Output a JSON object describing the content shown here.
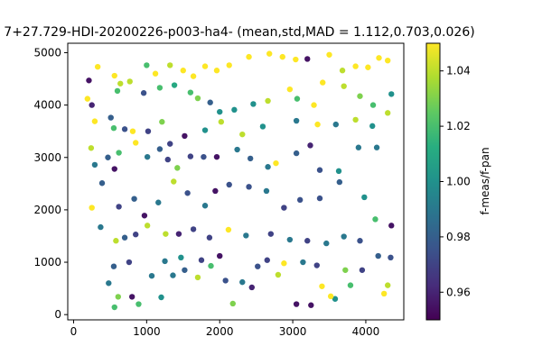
{
  "chart_data": {
    "type": "scatter",
    "title": "7+27.729-HDI-20200226-p003-ha4- (mean,std,MAD = 1.112,0.703,0.026)",
    "xlabel": "",
    "ylabel": "",
    "xlim": [
      -80,
      4520
    ],
    "ylim": [
      -100,
      5180
    ],
    "xticks": [
      0,
      1000,
      2000,
      3000,
      4000
    ],
    "yticks": [
      0,
      1000,
      2000,
      3000,
      4000,
      5000
    ],
    "grid": false,
    "colorbar": {
      "label": "f-meas/f-pan",
      "range": [
        0.95,
        1.05
      ],
      "ticks": [
        "0.96",
        "0.98",
        "1.00",
        "1.02",
        "1.04"
      ],
      "colormap": "viridis"
    },
    "points": [
      {
        "x": 210,
        "y": 4470,
        "c": 0.955
      },
      {
        "x": 330,
        "y": 4730,
        "c": 1.05
      },
      {
        "x": 560,
        "y": 4560,
        "c": 1.05
      },
      {
        "x": 640,
        "y": 4410,
        "c": 1.04
      },
      {
        "x": 770,
        "y": 4450,
        "c": 1.04
      },
      {
        "x": 1000,
        "y": 4760,
        "c": 1.02
      },
      {
        "x": 1120,
        "y": 4600,
        "c": 1.05
      },
      {
        "x": 1320,
        "y": 4760,
        "c": 1.04
      },
      {
        "x": 1500,
        "y": 4660,
        "c": 1.05
      },
      {
        "x": 1640,
        "y": 4550,
        "c": 1.05
      },
      {
        "x": 1800,
        "y": 4740,
        "c": 1.05
      },
      {
        "x": 1960,
        "y": 4660,
        "c": 1.05
      },
      {
        "x": 2130,
        "y": 4760,
        "c": 1.05
      },
      {
        "x": 2400,
        "y": 4920,
        "c": 1.05
      },
      {
        "x": 2680,
        "y": 4980,
        "c": 1.05
      },
      {
        "x": 2860,
        "y": 4920,
        "c": 1.05
      },
      {
        "x": 3040,
        "y": 4870,
        "c": 1.05
      },
      {
        "x": 3200,
        "y": 4880,
        "c": 0.955
      },
      {
        "x": 3500,
        "y": 4960,
        "c": 1.05
      },
      {
        "x": 3680,
        "y": 4660,
        "c": 1.04
      },
      {
        "x": 3860,
        "y": 4740,
        "c": 1.05
      },
      {
        "x": 4030,
        "y": 4720,
        "c": 1.05
      },
      {
        "x": 4180,
        "y": 4900,
        "c": 1.05
      },
      {
        "x": 4300,
        "y": 4850,
        "c": 1.05
      },
      {
        "x": 190,
        "y": 4120,
        "c": 1.05
      },
      {
        "x": 250,
        "y": 4000,
        "c": 0.96
      },
      {
        "x": 600,
        "y": 4270,
        "c": 1.02
      },
      {
        "x": 960,
        "y": 4230,
        "c": 0.975
      },
      {
        "x": 1180,
        "y": 4330,
        "c": 1.02
      },
      {
        "x": 1380,
        "y": 4380,
        "c": 1.01
      },
      {
        "x": 1600,
        "y": 4240,
        "c": 1.02
      },
      {
        "x": 1700,
        "y": 4130,
        "c": 1.03
      },
      {
        "x": 1870,
        "y": 4050,
        "c": 0.98
      },
      {
        "x": 2000,
        "y": 3870,
        "c": 1.0
      },
      {
        "x": 2200,
        "y": 3910,
        "c": 1.0
      },
      {
        "x": 2460,
        "y": 4020,
        "c": 1.0
      },
      {
        "x": 2660,
        "y": 4080,
        "c": 1.04
      },
      {
        "x": 2960,
        "y": 4300,
        "c": 1.05
      },
      {
        "x": 3060,
        "y": 4120,
        "c": 1.02
      },
      {
        "x": 3290,
        "y": 4000,
        "c": 1.05
      },
      {
        "x": 3410,
        "y": 4430,
        "c": 1.05
      },
      {
        "x": 3700,
        "y": 4360,
        "c": 1.04
      },
      {
        "x": 3920,
        "y": 4170,
        "c": 1.03
      },
      {
        "x": 4100,
        "y": 4000,
        "c": 1.02
      },
      {
        "x": 4300,
        "y": 3850,
        "c": 1.04
      },
      {
        "x": 4350,
        "y": 4210,
        "c": 1.0
      },
      {
        "x": 290,
        "y": 3690,
        "c": 1.05
      },
      {
        "x": 510,
        "y": 3760,
        "c": 0.98
      },
      {
        "x": 550,
        "y": 3560,
        "c": 1.02
      },
      {
        "x": 700,
        "y": 3540,
        "c": 0.975
      },
      {
        "x": 810,
        "y": 3500,
        "c": 1.05
      },
      {
        "x": 1020,
        "y": 3500,
        "c": 0.97
      },
      {
        "x": 1210,
        "y": 3680,
        "c": 1.03
      },
      {
        "x": 1320,
        "y": 3260,
        "c": 0.97
      },
      {
        "x": 1520,
        "y": 3410,
        "c": 0.955
      },
      {
        "x": 1800,
        "y": 3520,
        "c": 1.0
      },
      {
        "x": 2020,
        "y": 3680,
        "c": 1.04
      },
      {
        "x": 2310,
        "y": 3440,
        "c": 1.04
      },
      {
        "x": 2590,
        "y": 3590,
        "c": 1.0
      },
      {
        "x": 3050,
        "y": 3700,
        "c": 0.99
      },
      {
        "x": 3340,
        "y": 3630,
        "c": 1.05
      },
      {
        "x": 3590,
        "y": 3630,
        "c": 0.99
      },
      {
        "x": 3860,
        "y": 3720,
        "c": 1.04
      },
      {
        "x": 4090,
        "y": 3600,
        "c": 1.0
      },
      {
        "x": 240,
        "y": 3180,
        "c": 1.04
      },
      {
        "x": 290,
        "y": 2860,
        "c": 0.99
      },
      {
        "x": 470,
        "y": 3000,
        "c": 0.98
      },
      {
        "x": 560,
        "y": 2780,
        "c": 0.955
      },
      {
        "x": 620,
        "y": 3090,
        "c": 1.02
      },
      {
        "x": 850,
        "y": 3280,
        "c": 1.05
      },
      {
        "x": 1010,
        "y": 3010,
        "c": 0.99
      },
      {
        "x": 1180,
        "y": 3160,
        "c": 0.98
      },
      {
        "x": 1290,
        "y": 2960,
        "c": 0.97
      },
      {
        "x": 1420,
        "y": 2800,
        "c": 1.03
      },
      {
        "x": 1600,
        "y": 3020,
        "c": 0.97
      },
      {
        "x": 1780,
        "y": 3010,
        "c": 0.975
      },
      {
        "x": 1960,
        "y": 3010,
        "c": 0.955
      },
      {
        "x": 2240,
        "y": 3150,
        "c": 0.99
      },
      {
        "x": 2420,
        "y": 2980,
        "c": 0.98
      },
      {
        "x": 2660,
        "y": 2820,
        "c": 0.99
      },
      {
        "x": 2770,
        "y": 2890,
        "c": 1.05
      },
      {
        "x": 3050,
        "y": 3080,
        "c": 0.98
      },
      {
        "x": 3240,
        "y": 3230,
        "c": 0.96
      },
      {
        "x": 3370,
        "y": 2760,
        "c": 0.975
      },
      {
        "x": 3630,
        "y": 2740,
        "c": 1.0
      },
      {
        "x": 3900,
        "y": 3190,
        "c": 0.99
      },
      {
        "x": 4150,
        "y": 3190,
        "c": 0.99
      },
      {
        "x": 250,
        "y": 2040,
        "c": 1.05
      },
      {
        "x": 390,
        "y": 2510,
        "c": 0.98
      },
      {
        "x": 620,
        "y": 2060,
        "c": 0.97
      },
      {
        "x": 830,
        "y": 2210,
        "c": 0.98
      },
      {
        "x": 970,
        "y": 1890,
        "c": 0.955
      },
      {
        "x": 1160,
        "y": 2140,
        "c": 0.99
      },
      {
        "x": 1370,
        "y": 2540,
        "c": 1.04
      },
      {
        "x": 1560,
        "y": 2320,
        "c": 0.975
      },
      {
        "x": 1800,
        "y": 2080,
        "c": 0.99
      },
      {
        "x": 1940,
        "y": 2360,
        "c": 0.955
      },
      {
        "x": 2130,
        "y": 2480,
        "c": 0.975
      },
      {
        "x": 2400,
        "y": 2440,
        "c": 0.975
      },
      {
        "x": 2640,
        "y": 2360,
        "c": 0.99
      },
      {
        "x": 2880,
        "y": 2040,
        "c": 0.97
      },
      {
        "x": 3100,
        "y": 2190,
        "c": 0.975
      },
      {
        "x": 3370,
        "y": 2220,
        "c": 0.975
      },
      {
        "x": 3640,
        "y": 2530,
        "c": 0.98
      },
      {
        "x": 3980,
        "y": 2240,
        "c": 1.0
      },
      {
        "x": 4130,
        "y": 1820,
        "c": 1.02
      },
      {
        "x": 4350,
        "y": 1700,
        "c": 0.955
      },
      {
        "x": 370,
        "y": 1670,
        "c": 0.99
      },
      {
        "x": 580,
        "y": 1410,
        "c": 1.04
      },
      {
        "x": 700,
        "y": 1470,
        "c": 0.98
      },
      {
        "x": 850,
        "y": 1530,
        "c": 0.97
      },
      {
        "x": 1010,
        "y": 1700,
        "c": 1.04
      },
      {
        "x": 1260,
        "y": 1540,
        "c": 1.04
      },
      {
        "x": 1440,
        "y": 1540,
        "c": 0.96
      },
      {
        "x": 1640,
        "y": 1630,
        "c": 0.97
      },
      {
        "x": 1860,
        "y": 1470,
        "c": 0.97
      },
      {
        "x": 2120,
        "y": 1620,
        "c": 1.05
      },
      {
        "x": 2360,
        "y": 1510,
        "c": 0.99
      },
      {
        "x": 2700,
        "y": 1540,
        "c": 0.97
      },
      {
        "x": 2960,
        "y": 1430,
        "c": 0.99
      },
      {
        "x": 3200,
        "y": 1410,
        "c": 0.97
      },
      {
        "x": 3460,
        "y": 1360,
        "c": 0.99
      },
      {
        "x": 3700,
        "y": 1490,
        "c": 0.99
      },
      {
        "x": 3920,
        "y": 1410,
        "c": 0.975
      },
      {
        "x": 480,
        "y": 600,
        "c": 0.99
      },
      {
        "x": 560,
        "y": 140,
        "c": 1.02
      },
      {
        "x": 610,
        "y": 340,
        "c": 1.03
      },
      {
        "x": 800,
        "y": 340,
        "c": 0.955
      },
      {
        "x": 1070,
        "y": 740,
        "c": 0.99
      },
      {
        "x": 1200,
        "y": 330,
        "c": 1.0
      },
      {
        "x": 1360,
        "y": 750,
        "c": 0.99
      },
      {
        "x": 1520,
        "y": 850,
        "c": 0.98
      },
      {
        "x": 1700,
        "y": 710,
        "c": 1.04
      },
      {
        "x": 1880,
        "y": 930,
        "c": 1.02
      },
      {
        "x": 2080,
        "y": 650,
        "c": 0.975
      },
      {
        "x": 2310,
        "y": 620,
        "c": 0.99
      },
      {
        "x": 2520,
        "y": 920,
        "c": 0.975
      },
      {
        "x": 2800,
        "y": 760,
        "c": 1.04
      },
      {
        "x": 3050,
        "y": 200,
        "c": 0.955
      },
      {
        "x": 3250,
        "y": 180,
        "c": 0.955
      },
      {
        "x": 3400,
        "y": 540,
        "c": 1.05
      },
      {
        "x": 3580,
        "y": 300,
        "c": 1.0
      },
      {
        "x": 3720,
        "y": 850,
        "c": 1.03
      },
      {
        "x": 3950,
        "y": 850,
        "c": 0.97
      },
      {
        "x": 4250,
        "y": 400,
        "c": 1.05
      },
      {
        "x": 4340,
        "y": 1090,
        "c": 0.975
      },
      {
        "x": 550,
        "y": 920,
        "c": 0.98
      },
      {
        "x": 760,
        "y": 1000,
        "c": 0.97
      },
      {
        "x": 890,
        "y": 200,
        "c": 1.02
      },
      {
        "x": 1250,
        "y": 1020,
        "c": 0.99
      },
      {
        "x": 1470,
        "y": 1090,
        "c": 1.0
      },
      {
        "x": 1750,
        "y": 1040,
        "c": 0.97
      },
      {
        "x": 2000,
        "y": 1120,
        "c": 0.955
      },
      {
        "x": 2180,
        "y": 210,
        "c": 1.03
      },
      {
        "x": 2440,
        "y": 520,
        "c": 0.96
      },
      {
        "x": 2650,
        "y": 1040,
        "c": 0.97
      },
      {
        "x": 2880,
        "y": 980,
        "c": 1.05
      },
      {
        "x": 3140,
        "y": 1000,
        "c": 0.99
      },
      {
        "x": 3330,
        "y": 940,
        "c": 0.97
      },
      {
        "x": 3520,
        "y": 350,
        "c": 1.05
      },
      {
        "x": 3790,
        "y": 560,
        "c": 1.02
      },
      {
        "x": 4170,
        "y": 1120,
        "c": 0.98
      },
      {
        "x": 4300,
        "y": 560,
        "c": 1.04
      }
    ]
  }
}
